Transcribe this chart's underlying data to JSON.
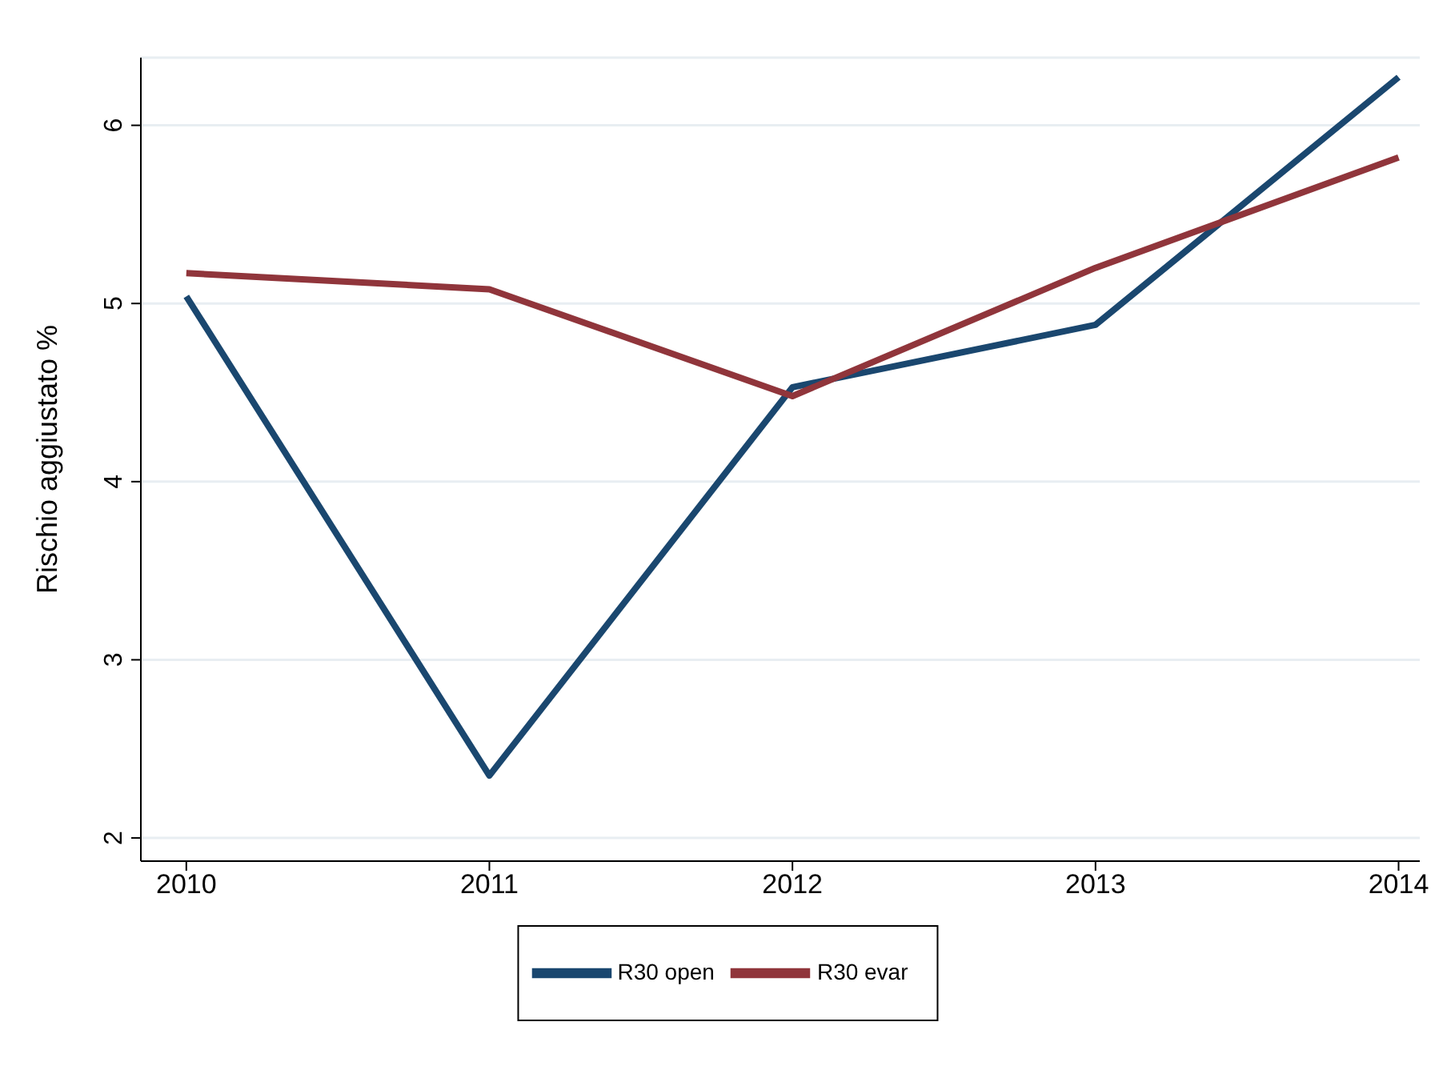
{
  "chart_data": {
    "type": "line",
    "ylabel": "Rischio aggiustato %",
    "x": [
      2010,
      2011,
      2012,
      2013,
      2014
    ],
    "series": [
      {
        "name": "R30 open",
        "color": "#1a476f",
        "values": [
          5.04,
          2.35,
          4.53,
          4.88,
          6.27
        ]
      },
      {
        "name": "R30 evar",
        "color": "#90353b",
        "values": [
          5.17,
          5.08,
          4.48,
          5.2,
          5.82
        ]
      }
    ],
    "xlim": [
      2009.85,
      2014.07
    ],
    "xticks": [
      2010,
      2011,
      2012,
      2013,
      2014
    ],
    "ylim": [
      1.87,
      6.38
    ],
    "yticks": [
      2,
      3,
      4,
      5,
      6
    ],
    "grid": "y",
    "legend": "bottom",
    "marker": "none",
    "line_style": "solid"
  }
}
